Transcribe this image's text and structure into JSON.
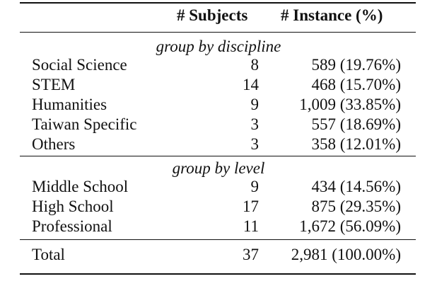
{
  "table": {
    "header": [
      "# Subjects",
      "# Instance (%)"
    ],
    "sections": [
      {
        "title": "group by discipline",
        "rows": [
          [
            "Social Science",
            8,
            "589 (19.76%)"
          ],
          [
            "STEM",
            14,
            "468 (15.70%)"
          ],
          [
            "Humanities",
            9,
            "1,009 (33.85%)"
          ],
          [
            "Taiwan Specific",
            3,
            "557 (18.69%)"
          ],
          [
            "Others",
            3,
            "358 (12.01%)"
          ]
        ]
      },
      {
        "title": "group by level",
        "rows": [
          [
            "Middle School",
            9,
            "434 (14.56%)"
          ],
          [
            "High School",
            17,
            "875 (29.35%)"
          ],
          [
            "Professional",
            11,
            "1,672 (56.09%)"
          ]
        ]
      }
    ],
    "total": [
      "Total",
      37,
      "2,981 (100.00%)"
    ]
  }
}
